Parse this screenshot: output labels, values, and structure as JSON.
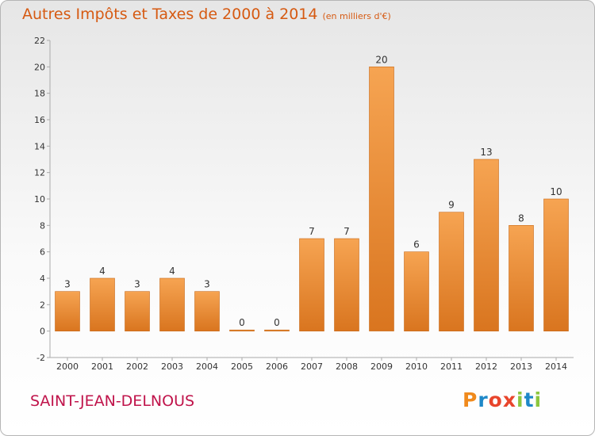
{
  "header": {
    "title": "Autres Impôts et Taxes de 2000 à 2014",
    "subtitle": "(en milliers d'€)"
  },
  "footer": {
    "commune": "SAINT-JEAN-DELNOUS",
    "logo_text": "Proxiti"
  },
  "colors": {
    "title": "#d65a12",
    "commune": "#c0144b",
    "bar_light": "#f6a452",
    "bar_dark": "#d9751f",
    "logo": [
      "#f08a1c",
      "#1e88c8",
      "#e8452c",
      "#e8452c",
      "#8cc63f",
      "#1e88c8",
      "#8cc63f"
    ]
  },
  "chart_data": {
    "type": "bar",
    "title": "Autres Impôts et Taxes de 2000 à 2014",
    "subtitle": "(en milliers d'€)",
    "categories": [
      "2000",
      "2001",
      "2002",
      "2003",
      "2004",
      "2005",
      "2006",
      "2007",
      "2008",
      "2009",
      "2010",
      "2011",
      "2012",
      "2013",
      "2014"
    ],
    "values": [
      3,
      4,
      3,
      4,
      3,
      0,
      0,
      7,
      7,
      20,
      6,
      9,
      13,
      8,
      10
    ],
    "data_labels": [
      "3",
      "4",
      "3",
      "4",
      "3",
      "0",
      "0",
      "7",
      "7",
      "20",
      "6",
      "9",
      "13",
      "8",
      "10"
    ],
    "ylim": [
      -2,
      22
    ],
    "yticks": [
      -2,
      0,
      2,
      4,
      6,
      8,
      10,
      12,
      14,
      16,
      18,
      20,
      22
    ],
    "xlabel": "",
    "ylabel": "",
    "grid": false,
    "legend": "none"
  }
}
